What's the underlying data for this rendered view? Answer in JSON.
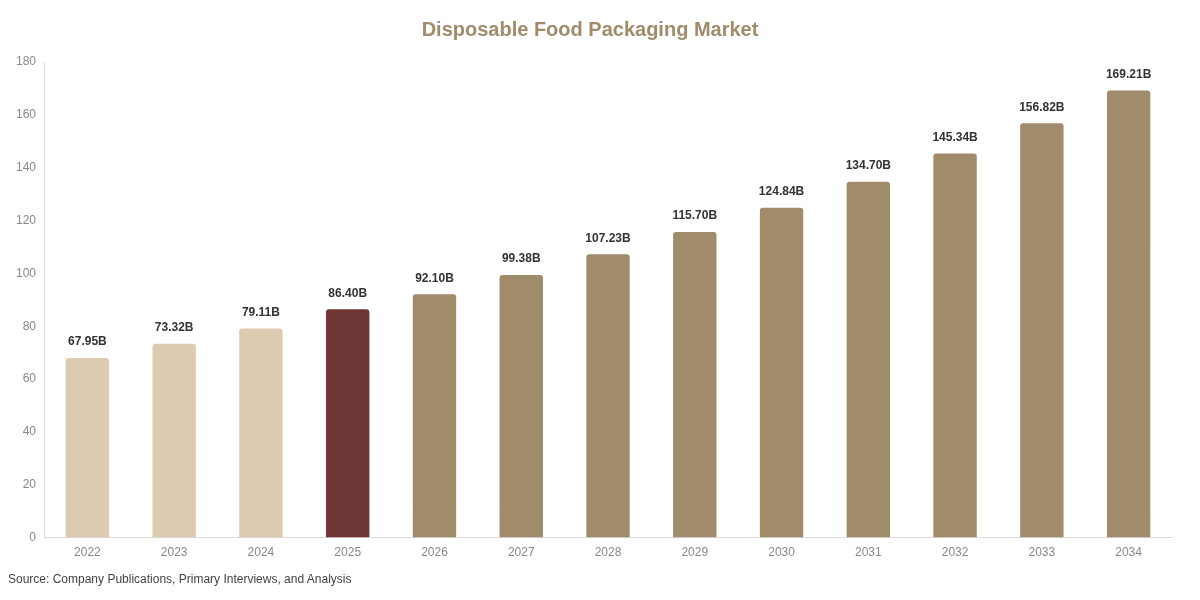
{
  "chart_data": {
    "type": "bar",
    "title": "Disposable Food Packaging Market",
    "categories": [
      "2022",
      "2023",
      "2024",
      "2025",
      "2026",
      "2027",
      "2028",
      "2029",
      "2030",
      "2031",
      "2032",
      "2033",
      "2034"
    ],
    "values": [
      67.95,
      73.32,
      79.11,
      86.4,
      92.1,
      99.38,
      107.23,
      115.7,
      124.84,
      134.7,
      145.34,
      156.82,
      169.21
    ],
    "colors": [
      "#dccbb0",
      "#dccbb0",
      "#dccbb0",
      "#6e3535",
      "#a08b6b",
      "#a08b6b",
      "#a08b6b",
      "#a08b6b",
      "#a08b6b",
      "#a08b6b",
      "#a08b6b",
      "#a08b6b",
      "#a08b6b"
    ],
    "value_labels": [
      "67.95B",
      "73.32B",
      "79.11B",
      "86.40B",
      "92.10B",
      "99.38B",
      "107.23B",
      "115.70B",
      "124.84B",
      "134.70B",
      "145.34B",
      "156.82B",
      "169.21B"
    ],
    "ylim": [
      0,
      180
    ],
    "yticks": [
      0,
      20,
      40,
      60,
      80,
      100,
      120,
      140,
      160,
      180
    ],
    "grid": false,
    "legend": false,
    "annotations": [
      "Source: Company Publications, Primary Interviews, and Analysis"
    ]
  }
}
